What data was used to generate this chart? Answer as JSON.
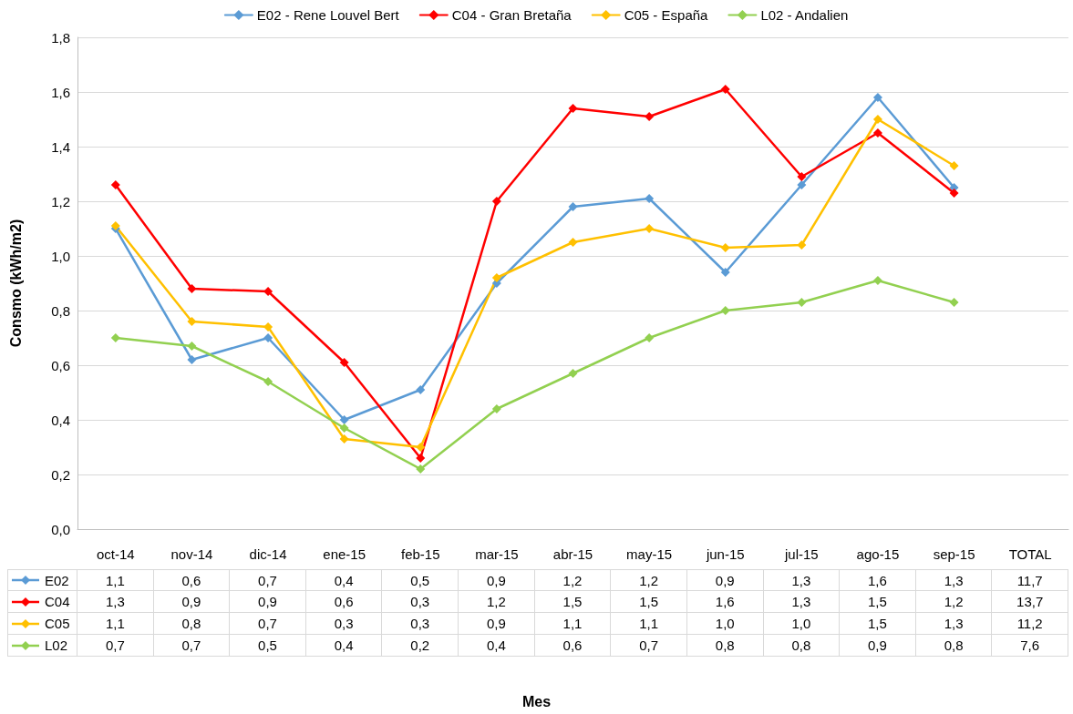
{
  "chart_data": {
    "type": "line",
    "ylabel": "Consmo (kWh/m2)",
    "categories": [
      "oct-14",
      "nov-14",
      "dic-14",
      "ene-15",
      "feb-15",
      "mar-15",
      "abr-15",
      "may-15",
      "jun-15",
      "jul-15",
      "ago-15",
      "sep-15",
      "TOTAL"
    ],
    "series": [
      {
        "name": "E02 - Rene Louvel Bert",
        "color": "#5b9bd5",
        "values": [
          1.1,
          0.62,
          0.7,
          0.4,
          0.51,
          0.9,
          1.18,
          1.21,
          0.94,
          1.26,
          1.58,
          1.25,
          null
        ],
        "value_labels": [
          "1,1",
          "0,6",
          "0,7",
          "0,4",
          "0,5",
          "0,9",
          "1,2",
          "1,2",
          "0,9",
          "1,3",
          "1,6",
          "1,3",
          "11,7"
        ]
      },
      {
        "name": "C04 - Gran Bretaña",
        "color": "#ff0000",
        "values": [
          1.26,
          0.88,
          0.87,
          0.61,
          0.26,
          1.2,
          1.54,
          1.51,
          1.61,
          1.29,
          1.45,
          1.23,
          null
        ],
        "value_labels": [
          "1,3",
          "0,9",
          "0,9",
          "0,6",
          "0,3",
          "1,2",
          "1,5",
          "1,5",
          "1,6",
          "1,3",
          "1,5",
          "1,2",
          "13,7"
        ]
      },
      {
        "name": "C05 - España",
        "color": "#ffc000",
        "values": [
          1.11,
          0.76,
          0.74,
          0.33,
          0.3,
          0.92,
          1.05,
          1.1,
          1.03,
          1.04,
          1.5,
          1.33,
          null
        ],
        "value_labels": [
          "1,1",
          "0,8",
          "0,7",
          "0,3",
          "0,3",
          "0,9",
          "1,1",
          "1,1",
          "1,0",
          "1,0",
          "1,5",
          "1,3",
          "11,2"
        ]
      },
      {
        "name": "L02 - Andalien",
        "color": "#92d050",
        "values": [
          0.7,
          0.67,
          0.54,
          0.37,
          0.22,
          0.44,
          0.57,
          0.7,
          0.8,
          0.83,
          0.91,
          0.83,
          null
        ],
        "value_labels": [
          "0,7",
          "0,7",
          "0,5",
          "0,4",
          "0,2",
          "0,4",
          "0,6",
          "0,7",
          "0,8",
          "0,8",
          "0,9",
          "0,8",
          "7,6"
        ]
      }
    ],
    "annotations": [
      "E02",
      "C04",
      "C05",
      "L02",
      "Mes"
    ],
    "ylim": [
      0,
      1.8
    ],
    "yticks": [
      {
        "value": 0,
        "label": "0,0"
      },
      {
        "value": 0.2,
        "label": "0,2"
      },
      {
        "value": 0.4,
        "label": "0,4"
      },
      {
        "value": 0.6,
        "label": "0,6"
      },
      {
        "value": 0.8,
        "label": "0,8"
      },
      {
        "value": 1.0,
        "label": "1,0"
      },
      {
        "value": 1.2,
        "label": "1,2"
      },
      {
        "value": 1.4,
        "label": "1,4"
      },
      {
        "value": 1.6,
        "label": "1,6"
      },
      {
        "value": 1.8,
        "label": "1,8"
      }
    ],
    "grid": "y",
    "legend": "top",
    "marker": "diamond",
    "line_style": "solid"
  }
}
